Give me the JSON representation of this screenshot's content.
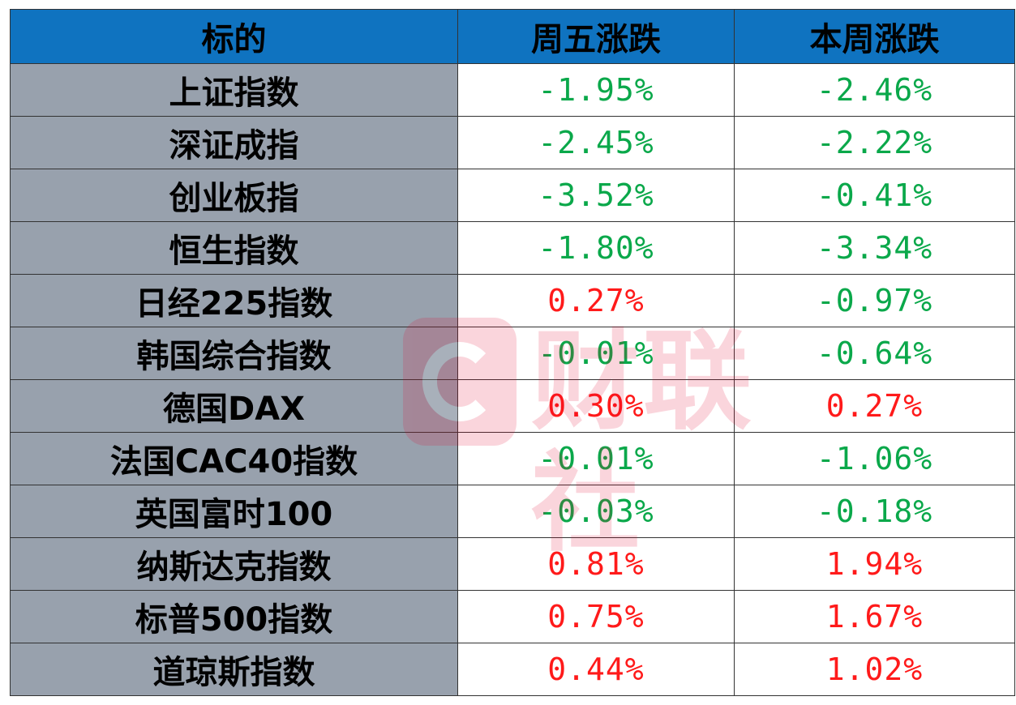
{
  "table": {
    "headers": {
      "name": "标的",
      "friday": "周五涨跌",
      "week": "本周涨跌"
    },
    "rows": [
      {
        "name": "上证指数",
        "friday": "-1.95%",
        "week": "-2.46%",
        "friday_dir": "down",
        "week_dir": "down"
      },
      {
        "name": "深证成指",
        "friday": "-2.45%",
        "week": "-2.22%",
        "friday_dir": "down",
        "week_dir": "down"
      },
      {
        "name": "创业板指",
        "friday": "-3.52%",
        "week": "-0.41%",
        "friday_dir": "down",
        "week_dir": "down"
      },
      {
        "name": "恒生指数",
        "friday": "-1.80%",
        "week": "-3.34%",
        "friday_dir": "down",
        "week_dir": "down"
      },
      {
        "name": "日经225指数",
        "friday": "0.27%",
        "week": "-0.97%",
        "friday_dir": "up",
        "week_dir": "down"
      },
      {
        "name": "韩国综合指数",
        "friday": "-0.01%",
        "week": "-0.64%",
        "friday_dir": "down",
        "week_dir": "down"
      },
      {
        "name": "德国DAX",
        "friday": "0.30%",
        "week": "0.27%",
        "friday_dir": "up",
        "week_dir": "up"
      },
      {
        "name": "法国CAC40指数",
        "friday": "-0.01%",
        "week": "-1.06%",
        "friday_dir": "down",
        "week_dir": "down"
      },
      {
        "name": "英国富时100",
        "friday": "-0.03%",
        "week": "-0.18%",
        "friday_dir": "down",
        "week_dir": "down"
      },
      {
        "name": "纳斯达克指数",
        "friday": "0.81%",
        "week": "1.94%",
        "friday_dir": "up",
        "week_dir": "up"
      },
      {
        "name": "标普500指数",
        "friday": "0.75%",
        "week": "1.67%",
        "friday_dir": "up",
        "week_dir": "up"
      },
      {
        "name": "道琼斯指数",
        "friday": "0.44%",
        "week": "1.02%",
        "friday_dir": "up",
        "week_dir": "up"
      }
    ]
  },
  "colors": {
    "header_bg": "#0f73c0",
    "name_bg": "#98a1ad",
    "down": "#0aa84a",
    "up": "#ff1a1a"
  },
  "watermark": {
    "text": "财联社",
    "logo_icon": "cls-logo-icon"
  }
}
